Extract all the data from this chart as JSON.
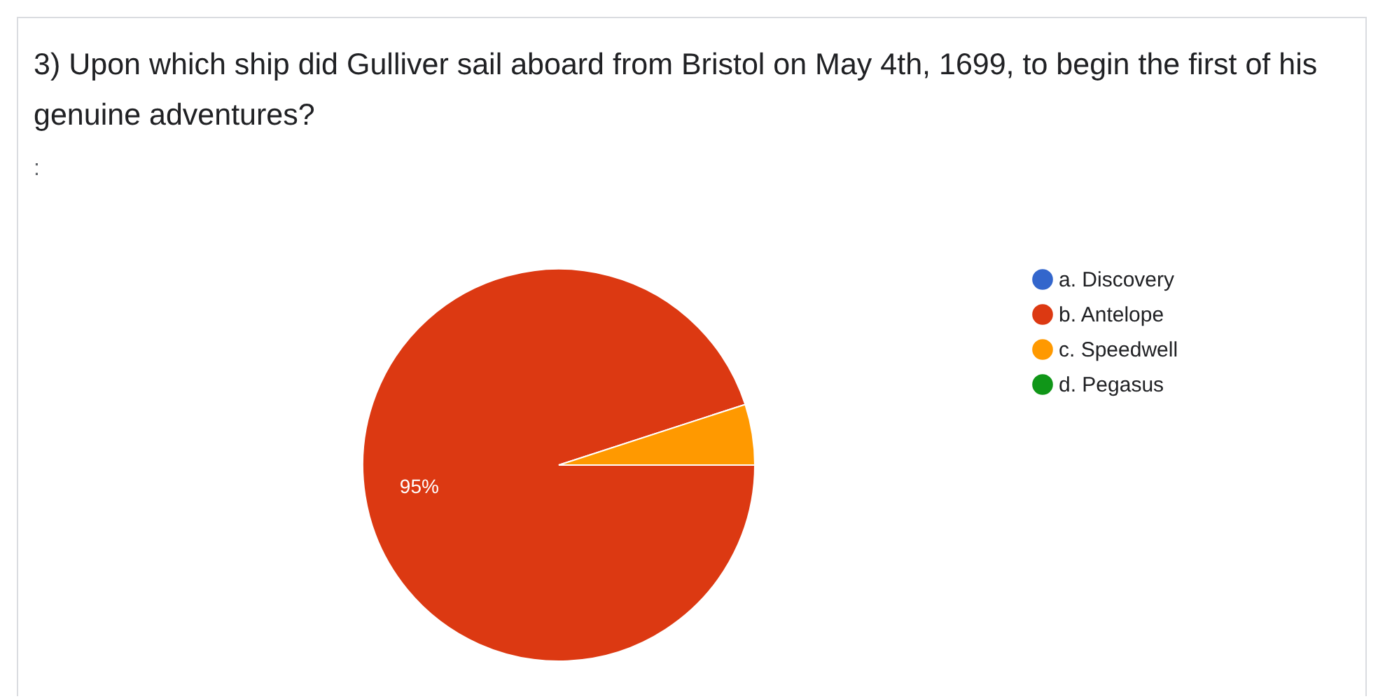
{
  "chart_data": {
    "type": "pie",
    "title": "3)  Upon which ship did Gulliver sail aboard from Bristol on May 4th, 1699, to begin the first of his genuine adventures?",
    "annotations": [
      ":"
    ],
    "categories": [
      "a. Discovery",
      "b. Antelope",
      "c. Speedwell",
      "d. Pegasus"
    ],
    "values": [
      0,
      95,
      5,
      0
    ],
    "colors": [
      "#3366cc",
      "#dc3912",
      "#ff9900",
      "#109618"
    ],
    "value_labels": [
      null,
      "95%",
      null,
      null
    ],
    "legend": "right"
  }
}
